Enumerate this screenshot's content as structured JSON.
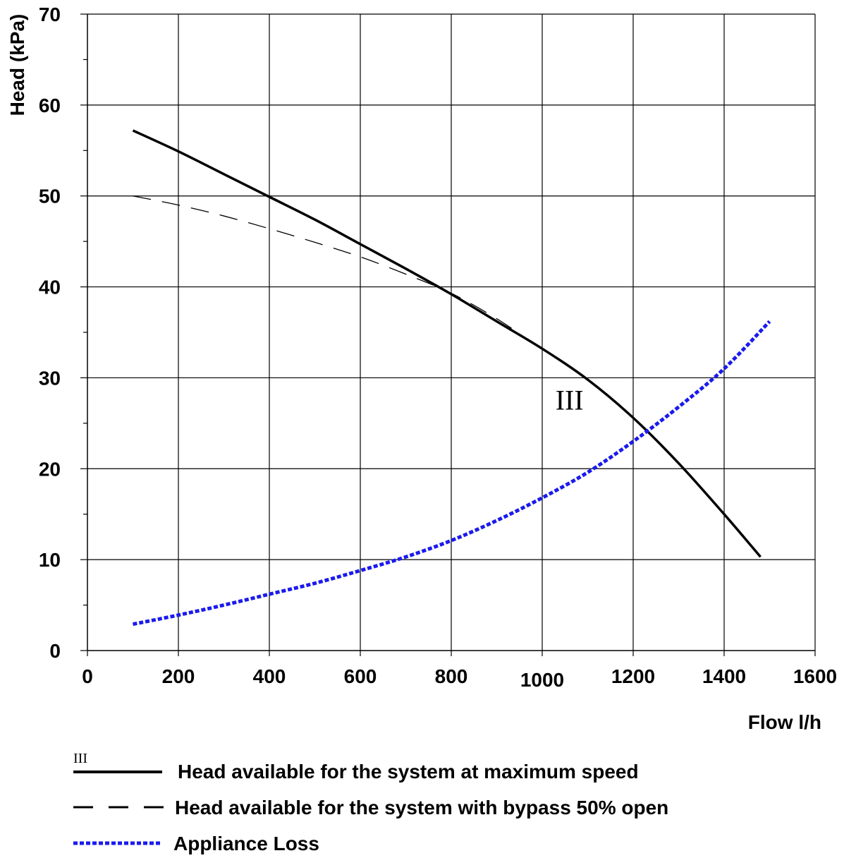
{
  "chart_data": {
    "type": "line",
    "xlabel": "Flow l/h",
    "ylabel": "Head (kPa)",
    "xlim": [
      0,
      1600
    ],
    "ylim": [
      0,
      70
    ],
    "x_ticks": [
      "0",
      "200",
      "400",
      "600",
      "800",
      "1000",
      "1200",
      "1400",
      "1600"
    ],
    "y_ticks": [
      "0",
      "10",
      "20",
      "30",
      "40",
      "50",
      "60",
      "70"
    ],
    "grid": true,
    "series": [
      {
        "name": "Head available for the system at maximum speed",
        "style": "solid",
        "color": "#000000",
        "x": [
          100,
          200,
          300,
          400,
          500,
          600,
          700,
          800,
          900,
          1000,
          1100,
          1200,
          1300,
          1400,
          1480
        ],
        "y": [
          57.2,
          54.9,
          52.4,
          49.9,
          47.4,
          44.7,
          42.0,
          39.2,
          36.2,
          33.2,
          29.8,
          25.6,
          20.6,
          15.0,
          10.3
        ]
      },
      {
        "name": "Head available for the system with bypass 50% open",
        "style": "dashed",
        "color": "#000000",
        "x": [
          100,
          200,
          300,
          400,
          500,
          600,
          700,
          800,
          900,
          980
        ],
        "y": [
          50.0,
          49.0,
          47.8,
          46.4,
          44.9,
          43.3,
          41.4,
          39.3,
          36.5,
          33.8
        ]
      },
      {
        "name": "Appliance Loss",
        "style": "dotted",
        "color": "#1a1aee",
        "x": [
          100,
          200,
          300,
          400,
          500,
          600,
          700,
          800,
          900,
          1000,
          1100,
          1200,
          1300,
          1400,
          1500
        ],
        "y": [
          2.9,
          3.9,
          5.0,
          6.2,
          7.4,
          8.8,
          10.3,
          12.1,
          14.3,
          16.8,
          19.6,
          23.0,
          26.8,
          31.0,
          36.2
        ]
      }
    ],
    "annotations": [
      {
        "text": "III",
        "x": 1060,
        "y": 26.5
      }
    ],
    "legend": {
      "placement": "bottom",
      "marker_label": "III"
    }
  }
}
